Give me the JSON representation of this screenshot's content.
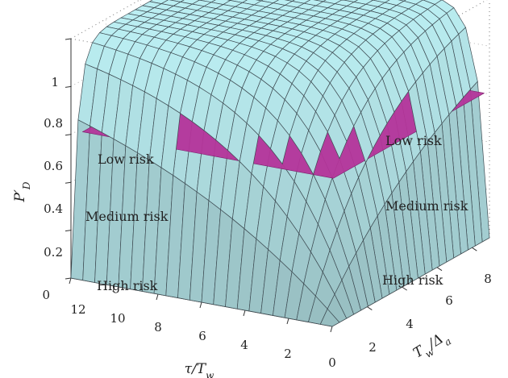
{
  "chart_data": {
    "type": "surface3d",
    "title": "",
    "zlabel": "P'_D",
    "xlabel": "τ/T_w",
    "ylabel": "T_w/Δ_a",
    "zlim": [
      0,
      1
    ],
    "z_ticks": [
      "0",
      "0.2",
      "0.4",
      "0.6",
      "0.8",
      "1"
    ],
    "x_ticks": [
      "12",
      "10",
      "8",
      "6",
      "4",
      "2",
      "0"
    ],
    "y_ticks": [
      "2",
      "4",
      "6",
      "8"
    ],
    "risk_planes": [
      {
        "name": "Low risk",
        "z": 0.6,
        "color": "#b4349a"
      },
      {
        "name": "Medium risk",
        "z": 0.2,
        "color": "#3a3aa2"
      }
    ],
    "zone_labels_left": [
      "Low risk",
      "Medium risk",
      "High risk"
    ],
    "zone_labels_right": [
      "Low risk",
      "Medium risk",
      "High risk"
    ],
    "surface_color": "#a8e6ea",
    "surface_model": "P'_D ≈ 1 - exp(-(τ/T_w)·(T_w/Δ_a)/4); rises from 0 at the origin corner to a plateau near 0.97"
  }
}
